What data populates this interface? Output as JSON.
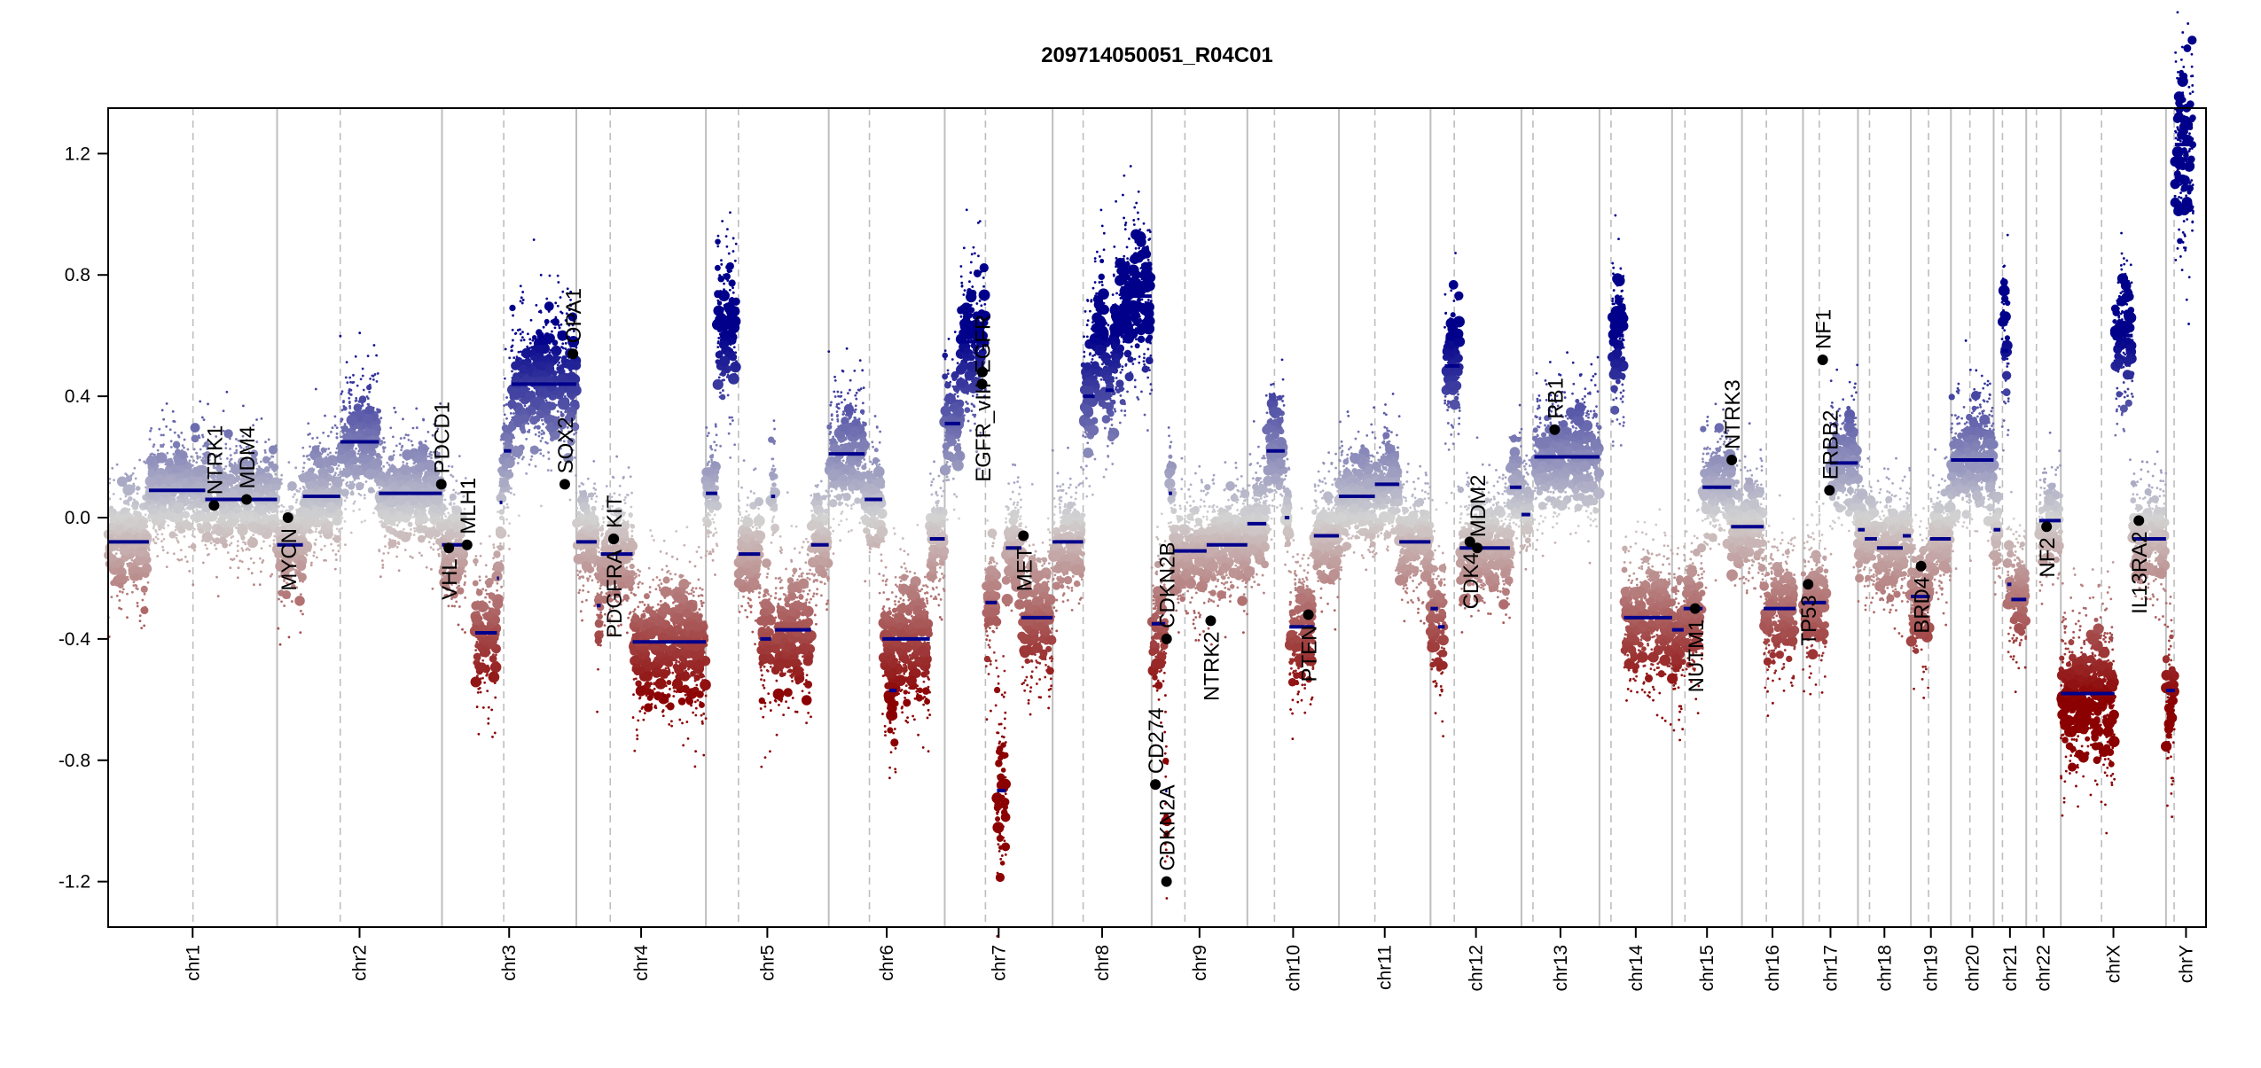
{
  "chart_data": {
    "type": "scatter",
    "title": "209714050051_R04C01",
    "xlabel": "",
    "ylabel": "",
    "ylim": [
      -1.35,
      1.35
    ],
    "yticks": [
      "-1.2",
      "-0.8",
      "-0.4",
      "0.0",
      "0.4",
      "0.8",
      "1.2"
    ],
    "grid": "chromosome boundaries (solid) and centromeres (dashed)",
    "colors": {
      "loss": "#8b0000",
      "neutral": "#d3d3d3",
      "gain": "#00008b",
      "segment": "#00008b",
      "gene": "#000000",
      "boundary": "#bebebe"
    },
    "chromosomes": [
      {
        "name": "chr1",
        "length": 249,
        "centromere": 125
      },
      {
        "name": "chr2",
        "length": 243,
        "centromere": 93
      },
      {
        "name": "chr3",
        "length": 198,
        "centromere": 91
      },
      {
        "name": "chr4",
        "length": 191,
        "centromere": 50
      },
      {
        "name": "chr5",
        "length": 181,
        "centromere": 48
      },
      {
        "name": "chr6",
        "length": 171,
        "centromere": 60
      },
      {
        "name": "chr7",
        "length": 159,
        "centromere": 60
      },
      {
        "name": "chr8",
        "length": 146,
        "centromere": 45
      },
      {
        "name": "chr9",
        "length": 141,
        "centromere": 49
      },
      {
        "name": "chr10",
        "length": 135,
        "centromere": 40
      },
      {
        "name": "chr11",
        "length": 135,
        "centromere": 53
      },
      {
        "name": "chr12",
        "length": 134,
        "centromere": 35
      },
      {
        "name": "chr13",
        "length": 115,
        "centromere": 17
      },
      {
        "name": "chr14",
        "length": 107,
        "centromere": 17
      },
      {
        "name": "chr15",
        "length": 103,
        "centromere": 19
      },
      {
        "name": "chr16",
        "length": 90,
        "centromere": 36
      },
      {
        "name": "chr17",
        "length": 81,
        "centromere": 24
      },
      {
        "name": "chr18",
        "length": 78,
        "centromere": 17
      },
      {
        "name": "chr19",
        "length": 59,
        "centromere": 26
      },
      {
        "name": "chr20",
        "length": 63,
        "centromere": 28
      },
      {
        "name": "chr21",
        "length": 48,
        "centromere": 13
      },
      {
        "name": "chr22",
        "length": 51,
        "centromere": 15
      },
      {
        "name": "chrX",
        "length": 155,
        "centromere": 60
      },
      {
        "name": "chrY",
        "length": 59,
        "centromere": 12
      }
    ],
    "segments": [
      [
        "chr1",
        0,
        60,
        -0.08
      ],
      [
        "chr1",
        60,
        143,
        0.09
      ],
      [
        "chr1",
        143,
        249,
        0.06
      ],
      [
        "chr2",
        0,
        38,
        -0.09
      ],
      [
        "chr2",
        38,
        93,
        0.07
      ],
      [
        "chr2",
        93,
        150,
        0.25
      ],
      [
        "chr2",
        150,
        243,
        0.08
      ],
      [
        "chr3",
        0,
        35,
        -0.09
      ],
      [
        "chr3",
        49,
        81,
        -0.38
      ],
      [
        "chr3",
        81,
        84,
        -0.2
      ],
      [
        "chr3",
        85,
        89,
        0.05
      ],
      [
        "chr3",
        91,
        102,
        0.22
      ],
      [
        "chr3",
        102,
        198,
        0.44
      ],
      [
        "chr4",
        0,
        30,
        -0.08
      ],
      [
        "chr4",
        30,
        36,
        -0.29
      ],
      [
        "chr4",
        36,
        83,
        -0.12
      ],
      [
        "chr4",
        83,
        191,
        -0.41
      ],
      [
        "chr5",
        0,
        17,
        0.08
      ],
      [
        "chr5",
        17,
        45,
        0.63
      ],
      [
        "chr5",
        48,
        80,
        -0.12
      ],
      [
        "chr5",
        80,
        96,
        -0.4
      ],
      [
        "chr5",
        96,
        102,
        0.07
      ],
      [
        "chr5",
        102,
        155,
        -0.37
      ],
      [
        "chr5",
        155,
        181,
        -0.09
      ],
      [
        "chr6",
        0,
        53,
        0.21
      ],
      [
        "chr6",
        53,
        79,
        0.06
      ],
      [
        "chr6",
        89,
        100,
        -0.57
      ],
      [
        "chr6",
        79,
        149,
        -0.4
      ],
      [
        "chr6",
        149,
        171,
        -0.07
      ],
      [
        "chr7",
        0,
        23,
        0.31
      ],
      [
        "chr7",
        23,
        60,
        0.58
      ],
      [
        "chr7",
        60,
        77,
        -0.28
      ],
      [
        "chr7",
        77,
        90,
        -0.9
      ],
      [
        "chr7",
        90,
        113,
        -0.1
      ],
      [
        "chr7",
        113,
        159,
        -0.33
      ],
      [
        "chr8",
        0,
        45,
        -0.08
      ],
      [
        "chr8",
        45,
        62,
        0.4
      ],
      [
        "chr8",
        62,
        78,
        0.6
      ],
      [
        "chr8",
        78,
        90,
        0.42
      ],
      [
        "chr8",
        90,
        104,
        0.62
      ],
      [
        "chr8",
        104,
        146,
        0.73
      ],
      [
        "chr9",
        0,
        20,
        -0.35
      ],
      [
        "chr9",
        20,
        23,
        -0.9
      ],
      [
        "chr9",
        25,
        30,
        0.08
      ],
      [
        "chr9",
        32,
        81,
        -0.11
      ],
      [
        "chr9",
        81,
        141,
        -0.09
      ],
      [
        "chr10",
        0,
        28,
        -0.02
      ],
      [
        "chr10",
        28,
        55,
        0.22
      ],
      [
        "chr10",
        55,
        62,
        0.0
      ],
      [
        "chr10",
        62,
        98,
        -0.36
      ],
      [
        "chr10",
        98,
        135,
        -0.06
      ],
      [
        "chr11",
        0,
        53,
        0.07
      ],
      [
        "chr11",
        53,
        89,
        0.11
      ],
      [
        "chr11",
        89,
        135,
        -0.08
      ],
      [
        "chr12",
        0,
        11,
        -0.3
      ],
      [
        "chr12",
        11,
        21,
        -0.36
      ],
      [
        "chr12",
        21,
        43,
        0.5
      ],
      [
        "chr12",
        43,
        117,
        -0.1
      ],
      [
        "chr12",
        117,
        134,
        0.1
      ],
      [
        "chr13",
        0,
        13,
        0.01
      ],
      [
        "chr13",
        19,
        115,
        0.2
      ],
      [
        "chr14",
        19,
        36,
        0.6
      ],
      [
        "chr14",
        36,
        107,
        -0.33
      ],
      [
        "chr15",
        0,
        17,
        -0.37
      ],
      [
        "chr15",
        17,
        45,
        -0.3
      ],
      [
        "chr15",
        45,
        87,
        0.1
      ],
      [
        "chr15",
        87,
        103,
        -0.03
      ],
      [
        "chr16",
        0,
        32,
        -0.03
      ],
      [
        "chr16",
        32,
        79,
        -0.3
      ],
      [
        "chr17",
        0,
        34,
        -0.28
      ],
      [
        "chr17",
        40,
        81,
        0.18
      ],
      [
        "chr18",
        0,
        10,
        -0.04
      ],
      [
        "chr18",
        10,
        28,
        -0.07
      ],
      [
        "chr18",
        28,
        66,
        -0.1
      ],
      [
        "chr18",
        66,
        78,
        -0.06
      ],
      [
        "chr19",
        0,
        28,
        -0.26
      ],
      [
        "chr19",
        28,
        59,
        -0.07
      ],
      [
        "chr20",
        0,
        63,
        0.19
      ],
      [
        "chr21",
        0,
        10,
        -0.04
      ],
      [
        "chr21",
        12,
        22,
        0.55
      ],
      [
        "chr21",
        20,
        26,
        -0.22
      ],
      [
        "chr21",
        26,
        48,
        -0.27
      ],
      [
        "chr22",
        19,
        51,
        -0.01
      ],
      [
        "chrX",
        0,
        79,
        -0.58
      ],
      [
        "chrX",
        79,
        106,
        0.6
      ],
      [
        "chrX",
        106,
        155,
        -0.07
      ],
      [
        "chrY",
        0,
        13,
        -0.57
      ],
      [
        "chrY",
        13,
        40,
        1.23
      ]
    ],
    "genes": [
      {
        "name": "NTRK1",
        "chrom": "chr1",
        "pos": 156,
        "value": 0.04,
        "label_side": "above"
      },
      {
        "name": "MDM4",
        "chrom": "chr1",
        "pos": 204,
        "value": 0.06,
        "label_side": "above"
      },
      {
        "name": "MYCN",
        "chrom": "chr2",
        "pos": 16,
        "value": 0.0,
        "label_side": "below"
      },
      {
        "name": "PDCD1",
        "chrom": "chr2",
        "pos": 242,
        "value": 0.11,
        "label_side": "above"
      },
      {
        "name": "VHL",
        "chrom": "chr3",
        "pos": 10,
        "value": -0.1,
        "label_side": "below"
      },
      {
        "name": "MLH1",
        "chrom": "chr3",
        "pos": 37,
        "value": -0.09,
        "label_side": "below"
      },
      {
        "name": "SOX2",
        "chrom": "chr3",
        "pos": 181,
        "value": 0.11,
        "label_side": "above"
      },
      {
        "name": "OPA1",
        "chrom": "chr3",
        "pos": 193,
        "value": 0.54,
        "label_side": "above"
      },
      {
        "name": "PDGFRA",
        "chrom": "chr4",
        "pos": 55,
        "value": -0.07,
        "label_side": "below"
      },
      {
        "name": "KIT",
        "chrom": "chr4",
        "pos": 55,
        "value": -0.07,
        "label_side": "below"
      },
      {
        "name": "EGFR",
        "chrom": "chr7",
        "pos": 55,
        "value": 0.44,
        "label_side": "above"
      },
      {
        "name": "EGFR_vIII",
        "chrom": "chr7",
        "pos": 55.5,
        "value": 0.48,
        "label_side": "above"
      },
      {
        "name": "MET",
        "chrom": "chr7",
        "pos": 116,
        "value": -0.06,
        "label_side": "below"
      },
      {
        "name": "CD274",
        "chrom": "chr9",
        "pos": 5.5,
        "value": -0.88,
        "label_side": "above"
      },
      {
        "name": "CDKN2A",
        "chrom": "chr9",
        "pos": 21.9,
        "value": -1.2,
        "label_side": "below"
      },
      {
        "name": "CDKN2B",
        "chrom": "chr9",
        "pos": 22,
        "value": -0.4,
        "label_side": "below"
      },
      {
        "name": "NTRK2",
        "chrom": "chr9",
        "pos": 87,
        "value": -0.34,
        "label_side": "below"
      },
      {
        "name": "PTEN",
        "chrom": "chr10",
        "pos": 90,
        "value": -0.32,
        "label_side": "below"
      },
      {
        "name": "CDK4",
        "chrom": "chr12",
        "pos": 58,
        "value": -0.08,
        "label_side": "below"
      },
      {
        "name": "MDM2",
        "chrom": "chr12",
        "pos": 69,
        "value": -0.1,
        "label_side": "below"
      },
      {
        "name": "RB1",
        "chrom": "chr13",
        "pos": 49,
        "value": 0.29,
        "label_side": "above"
      },
      {
        "name": "NUTM1",
        "chrom": "chr15",
        "pos": 34,
        "value": -0.3,
        "label_side": "below"
      },
      {
        "name": "NTRK3",
        "chrom": "chr15",
        "pos": 88,
        "value": 0.19,
        "label_side": "above"
      },
      {
        "name": "TP53",
        "chrom": "chr17",
        "pos": 7.5,
        "value": -0.22,
        "label_side": "below"
      },
      {
        "name": "NF1",
        "chrom": "chr17",
        "pos": 29,
        "value": 0.52,
        "label_side": "above"
      },
      {
        "name": "ERBB2",
        "chrom": "chr17",
        "pos": 39,
        "value": 0.09,
        "label_side": "above"
      },
      {
        "name": "BRD4",
        "chrom": "chr19",
        "pos": 15,
        "value": -0.16,
        "label_side": "below"
      },
      {
        "name": "NF2",
        "chrom": "chr22",
        "pos": 30,
        "value": -0.03,
        "label_side": "below"
      },
      {
        "name": "IL13RA2",
        "chrom": "chrX",
        "pos": 115,
        "value": -0.01,
        "label_side": "below"
      }
    ]
  }
}
